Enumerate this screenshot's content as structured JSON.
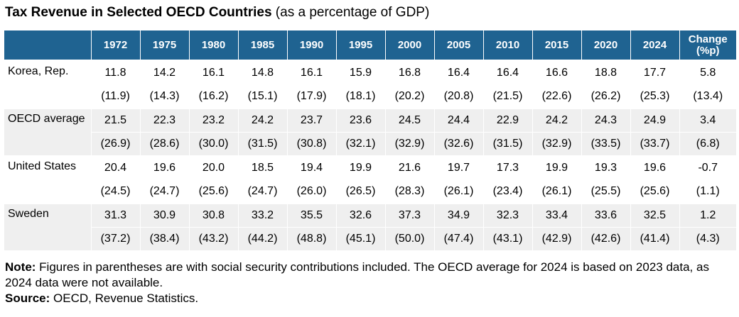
{
  "title": {
    "bold": "Tax Revenue in Selected OECD Countries",
    "rest": " (as a percentage of GDP)"
  },
  "chart_data": {
    "type": "table",
    "columns": [
      "1972",
      "1975",
      "1980",
      "1985",
      "1990",
      "1995",
      "2000",
      "2005",
      "2010",
      "2015",
      "2020",
      "2024",
      "Change (%p)"
    ],
    "rows": [
      {
        "country": "Korea, Rep.",
        "values": [
          "11.8",
          "14.2",
          "16.1",
          "14.8",
          "16.1",
          "15.9",
          "16.8",
          "16.4",
          "16.4",
          "16.6",
          "18.8",
          "17.7",
          "5.8"
        ],
        "with_ssc": [
          "(11.9)",
          "(14.3)",
          "(16.2)",
          "(15.1)",
          "(17.9)",
          "(18.1)",
          "(20.2)",
          "(20.8)",
          "(21.5)",
          "(22.6)",
          "(26.2)",
          "(25.3)",
          "(13.4)"
        ]
      },
      {
        "country": "OECD average",
        "values": [
          "21.5",
          "22.3",
          "23.2",
          "24.2",
          "23.7",
          "23.6",
          "24.5",
          "24.4",
          "22.9",
          "24.2",
          "24.3",
          "24.9",
          "3.4"
        ],
        "with_ssc": [
          "(26.9)",
          "(28.6)",
          "(30.0)",
          "(31.5)",
          "(30.8)",
          "(32.1)",
          "(32.9)",
          "(32.6)",
          "(31.5)",
          "(32.9)",
          "(33.5)",
          "(33.7)",
          "(6.8)"
        ]
      },
      {
        "country": "United States",
        "values": [
          "20.4",
          "19.6",
          "20.0",
          "18.5",
          "19.4",
          "19.9",
          "21.6",
          "19.7",
          "17.3",
          "19.9",
          "19.3",
          "19.6",
          "-0.7"
        ],
        "with_ssc": [
          "(24.5)",
          "(24.7)",
          "(25.6)",
          "(24.7)",
          "(26.0)",
          "(26.5)",
          "(28.3)",
          "(26.1)",
          "(23.4)",
          "(26.1)",
          "(25.5)",
          "(25.6)",
          "(1.1)"
        ]
      },
      {
        "country": "Sweden",
        "values": [
          "31.3",
          "30.9",
          "30.8",
          "33.2",
          "35.5",
          "32.6",
          "37.3",
          "34.9",
          "32.3",
          "33.4",
          "33.6",
          "32.5",
          "1.2"
        ],
        "with_ssc": [
          "(37.2)",
          "(38.4)",
          "(43.2)",
          "(44.2)",
          "(48.8)",
          "(45.1)",
          "(50.0)",
          "(47.4)",
          "(43.1)",
          "(42.9)",
          "(42.6)",
          "(41.4)",
          "(4.3)"
        ]
      }
    ]
  },
  "notes": {
    "note_label": "Note:",
    "note_text": " Figures in parentheses are with social security contributions included. The OECD average for 2024 is based on 2023 data, as 2024 data were not available.",
    "source_label": "Source:",
    "source_text": " OECD, Revenue Statistics."
  },
  "colors": {
    "header_bg": "#1f6391",
    "header_text": "#ffffff",
    "stripe_bg": "#efefef"
  }
}
